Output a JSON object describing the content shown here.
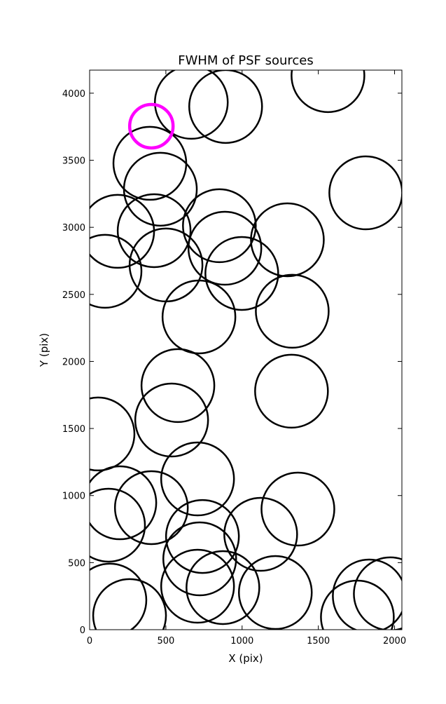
{
  "chart_data": {
    "type": "scatter",
    "title": "FWHM of PSF sources",
    "x_label": "X (pix)",
    "y_label": "Y (pix)",
    "xlim": [
      0,
      2048
    ],
    "ylim": [
      0,
      4172
    ],
    "xticks": [
      0,
      500,
      1000,
      1500,
      2000
    ],
    "yticks": [
      0,
      500,
      1000,
      1500,
      2000,
      2500,
      3000,
      3500,
      4000
    ],
    "series": [
      {
        "color": "#000000",
        "x": [
          667,
          892,
          1563,
          395,
          464,
          1811,
          184,
          423,
          851,
          1297,
          887,
          101,
          501,
          998,
          1329,
          717,
          579,
          1324,
          55,
          538,
          708,
          198,
          124,
          405,
          1366,
          740,
          1122,
          722,
          133,
          708,
          874,
          1218,
          1834,
          1972,
          262,
          1756
        ],
        "y": [
          3932,
          3901,
          4131,
          3477,
          3284,
          3257,
          2970,
          2975,
          3012,
          2907,
          2844,
          2672,
          2719,
          2656,
          2374,
          2332,
          1820,
          1778,
          1459,
          1563,
          1124,
          946,
          779,
          910,
          899,
          695,
          711,
          528,
          220,
          324,
          314,
          277,
          251,
          267,
          105,
          94
        ]
      },
      {
        "color": "#ff00ff",
        "x": [
          405
        ],
        "y": [
          3754
        ]
      }
    ]
  }
}
